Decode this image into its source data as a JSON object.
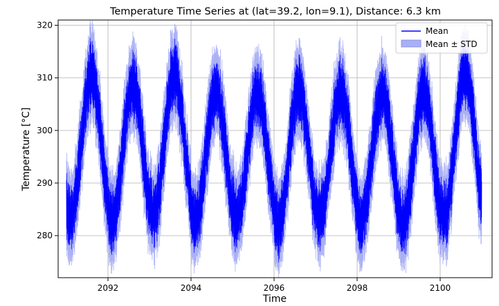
{
  "chart_data": {
    "type": "line",
    "title": "Temperature Time Series at (lat=39.2, lon=9.1), Distance: 6.3 km",
    "xlabel": "Time",
    "ylabel": "Temperature [°C]",
    "xlim": [
      2090.8,
      2101.25
    ],
    "ylim": [
      272,
      321
    ],
    "x_ticks": [
      2092,
      2094,
      2096,
      2098,
      2100
    ],
    "x_tick_labels": [
      "2092",
      "2094",
      "2096",
      "2098",
      "2100"
    ],
    "y_ticks": [
      280,
      290,
      300,
      310,
      320
    ],
    "y_tick_labels": [
      "280",
      "290",
      "300",
      "310",
      "320"
    ],
    "grid": true,
    "legend_position": "top-right",
    "colors": {
      "mean": "#0000ff",
      "band": "#aab0f5",
      "grid": "#b0b0b0"
    },
    "seasonal_peaks": [
      {
        "year": 2091,
        "mean_max": 313.5,
        "upper_max": 317.5
      },
      {
        "year": 2092,
        "mean_max": 311.5,
        "upper_max": 315.5
      },
      {
        "year": 2093,
        "mean_max": 313.5,
        "upper_max": 318.5
      },
      {
        "year": 2094,
        "mean_max": 310.5,
        "upper_max": 314.5
      },
      {
        "year": 2095,
        "mean_max": 310.0,
        "upper_max": 314.0
      },
      {
        "year": 2096,
        "mean_max": 310.5,
        "upper_max": 314.5
      },
      {
        "year": 2097,
        "mean_max": 310.5,
        "upper_max": 314.5
      },
      {
        "year": 2098,
        "mean_max": 310.0,
        "upper_max": 314.0
      },
      {
        "year": 2099,
        "mean_max": 310.5,
        "upper_max": 314.5
      },
      {
        "year": 2100,
        "mean_max": 314.0,
        "upper_max": 317.5
      }
    ],
    "winter_troughs": [
      {
        "year": 2091,
        "mean_min": 280.5,
        "lower_min": 276.0
      },
      {
        "year": 2092,
        "mean_min": 280.0,
        "lower_min": 276.5
      },
      {
        "year": 2093,
        "mean_min": 281.0,
        "lower_min": 277.0
      },
      {
        "year": 2094,
        "mean_min": 279.5,
        "lower_min": 275.5
      },
      {
        "year": 2095,
        "mean_min": 280.5,
        "lower_min": 276.5
      },
      {
        "year": 2096,
        "mean_min": 279.0,
        "lower_min": 274.5
      },
      {
        "year": 2097,
        "mean_min": 280.5,
        "lower_min": 276.5
      },
      {
        "year": 2098,
        "mean_min": 279.5,
        "lower_min": 276.0
      },
      {
        "year": 2099,
        "mean_min": 279.0,
        "lower_min": 276.5
      },
      {
        "year": 2100,
        "mean_min": 280.5,
        "lower_min": 276.5
      },
      {
        "year": 2101,
        "mean_min": 282.0,
        "lower_min": 277.5
      }
    ],
    "series": [
      {
        "name": "Mean",
        "kind": "line",
        "x_range": [
          2091.0,
          2101.0
        ],
        "daily_range_c": 12,
        "std_c": 3.5
      },
      {
        "name": "Mean ± STD",
        "kind": "band"
      }
    ]
  }
}
